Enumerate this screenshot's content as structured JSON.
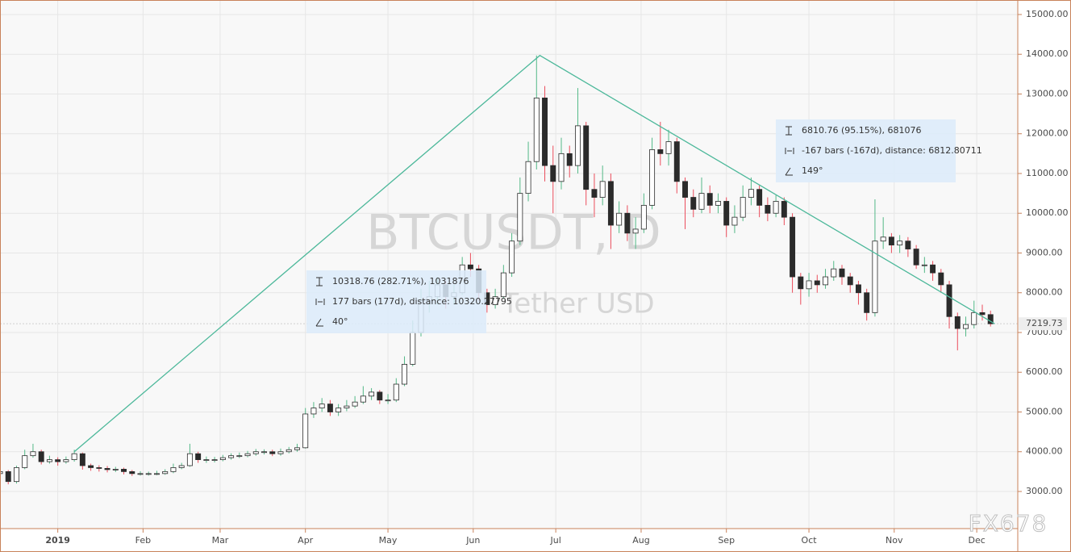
{
  "chart_data": {
    "type": "candlestick",
    "title": "BTCUSDT, D",
    "subtitle": "Tether USD",
    "watermark": "FX678",
    "up_wick_color": "#53b987",
    "down_wick_color": "#eb4d5c",
    "up_body_color": "#ffffff",
    "down_body_color": "#2b2b2b",
    "grid": true,
    "xlim": [
      0,
      123.3
    ],
    "ylim": [
      2066,
      15365
    ],
    "xticks": [
      {
        "value": 7,
        "label": "2019"
      },
      {
        "value": 17.33,
        "label": "Feb"
      },
      {
        "value": 26.67,
        "label": "Mar"
      },
      {
        "value": 37,
        "label": "Apr"
      },
      {
        "value": 47,
        "label": "May"
      },
      {
        "value": 57.33,
        "label": "Jun"
      },
      {
        "value": 67.33,
        "label": "Jul"
      },
      {
        "value": 77.67,
        "label": "Aug"
      },
      {
        "value": 88,
        "label": "Sep"
      },
      {
        "value": 98,
        "label": "Oct"
      },
      {
        "value": 108.33,
        "label": "Nov"
      },
      {
        "value": 118.33,
        "label": "Dec"
      }
    ],
    "yticks": [
      {
        "value": 3000,
        "label": "3000.00"
      },
      {
        "value": 4000,
        "label": "4000.00"
      },
      {
        "value": 5000,
        "label": "5000.00"
      },
      {
        "value": 6000,
        "label": "6000.00"
      },
      {
        "value": 7000,
        "label": "7000.00"
      },
      {
        "value": 8000,
        "label": "8000.00"
      },
      {
        "value": 9000,
        "label": "9000.00"
      },
      {
        "value": 10000,
        "label": "10000.00"
      },
      {
        "value": 11000,
        "label": "11000.00"
      },
      {
        "value": 12000,
        "label": "12000.00"
      },
      {
        "value": 13000,
        "label": "13000.00"
      },
      {
        "value": 14000,
        "label": "14000.00"
      },
      {
        "value": 15000,
        "label": "15000.00"
      }
    ],
    "open": [
      3450,
      3500,
      3250,
      3600,
      3900,
      4000,
      3750,
      3800,
      3750,
      3800,
      3950,
      3650,
      3600,
      3580,
      3550,
      3560,
      3500,
      3450,
      3450,
      3450,
      3450,
      3500,
      3600,
      3650,
      3950,
      3800,
      3800,
      3800,
      3850,
      3900,
      3900,
      3950,
      4000,
      4000,
      3950,
      4000,
      4050,
      4100,
      4950,
      5100,
      5200,
      5000,
      5100,
      5150,
      5250,
      5400,
      5500,
      5300,
      5300,
      5700,
      6200,
      7000,
      7800,
      7900,
      8200,
      7900,
      8000,
      8700,
      8600,
      8000,
      7700,
      7900,
      8500,
      9300,
      10500,
      11300,
      12900,
      11200,
      10800,
      11500,
      11200,
      12200,
      10600,
      10400,
      10800,
      9700,
      10000,
      9500,
      9600,
      10200,
      11600,
      11500,
      11800,
      10800,
      10400,
      10100,
      10500,
      10200,
      10300,
      9700,
      9900,
      10400,
      10600,
      10200,
      10000,
      10300,
      9900,
      8400,
      8100,
      8300,
      8200,
      8400,
      8600,
      8400,
      8200,
      8000,
      7500,
      9300,
      9400,
      9200,
      9300,
      9100,
      8700,
      8700,
      8500,
      8200,
      7400,
      7100,
      7200,
      7500,
      7450
    ],
    "high": [
      3560,
      3540,
      3650,
      4050,
      4200,
      4050,
      3900,
      3860,
      3880,
      4050,
      3980,
      3700,
      3660,
      3640,
      3620,
      3600,
      3540,
      3510,
      3500,
      3520,
      3560,
      3700,
      3720,
      4200,
      4000,
      3880,
      3870,
      3920,
      3960,
      3980,
      4020,
      4070,
      4060,
      4050,
      4080,
      4120,
      4200,
      5100,
      5250,
      5350,
      5300,
      5200,
      5300,
      5400,
      5650,
      5600,
      5550,
      5450,
      5850,
      6400,
      7300,
      8100,
      8300,
      8400,
      8300,
      8200,
      8900,
      9000,
      8700,
      8100,
      8100,
      8700,
      9500,
      10900,
      11800,
      13970,
      13200,
      11700,
      11900,
      11700,
      13150,
      12300,
      11000,
      11200,
      11000,
      10300,
      10200,
      9900,
      10500,
      11900,
      12300,
      12100,
      11900,
      10900,
      10600,
      10900,
      10700,
      10500,
      10400,
      10200,
      10700,
      10900,
      10700,
      10400,
      10450,
      10400,
      10000,
      8500,
      8500,
      8450,
      8600,
      8800,
      8700,
      8500,
      8300,
      8100,
      10350,
      9900,
      9500,
      9450,
      9400,
      9200,
      8900,
      8800,
      8600,
      8300,
      7500,
      7400,
      7800,
      7700,
      7550
    ],
    "low": [
      3380,
      3180,
      3200,
      3560,
      3850,
      3680,
      3700,
      3650,
      3700,
      3750,
      3550,
      3520,
      3500,
      3480,
      3490,
      3430,
      3390,
      3400,
      3400,
      3410,
      3420,
      3460,
      3560,
      3620,
      3720,
      3720,
      3730,
      3760,
      3800,
      3840,
      3860,
      3900,
      3930,
      3890,
      3900,
      3960,
      4000,
      4080,
      4850,
      5000,
      4900,
      4900,
      5020,
      5100,
      5200,
      5300,
      5200,
      5200,
      5250,
      5650,
      6150,
      6900,
      7500,
      7700,
      7600,
      7700,
      7950,
      8400,
      7800,
      7500,
      7600,
      7850,
      8400,
      9200,
      10300,
      11100,
      10800,
      10000,
      10600,
      10900,
      11000,
      10200,
      9900,
      10200,
      9100,
      9500,
      9300,
      9100,
      9500,
      10100,
      11200,
      11200,
      10500,
      9600,
      9900,
      10000,
      10000,
      10000,
      9400,
      9500,
      9800,
      10200,
      9900,
      9800,
      9900,
      9700,
      8000,
      7700,
      7900,
      8000,
      8100,
      8300,
      8200,
      8000,
      7700,
      7300,
      7400,
      9100,
      9000,
      9000,
      8900,
      8600,
      8500,
      8300,
      8000,
      7100,
      6550,
      6900,
      7100,
      7300,
      7150
    ],
    "close": [
      3500,
      3250,
      3600,
      3900,
      4000,
      3750,
      3800,
      3750,
      3800,
      3950,
      3650,
      3600,
      3580,
      3550,
      3560,
      3500,
      3450,
      3450,
      3450,
      3450,
      3500,
      3600,
      3650,
      3950,
      3800,
      3800,
      3800,
      3850,
      3900,
      3900,
      3950,
      4000,
      4000,
      3950,
      4000,
      4050,
      4100,
      4950,
      5100,
      5200,
      5000,
      5100,
      5150,
      5250,
      5400,
      5500,
      5300,
      5300,
      5700,
      6200,
      7000,
      7800,
      7900,
      8200,
      7900,
      8000,
      8700,
      8600,
      8000,
      7700,
      7900,
      8500,
      9300,
      10500,
      11300,
      12900,
      11200,
      10800,
      11500,
      11200,
      12200,
      10600,
      10400,
      10800,
      9700,
      10000,
      9500,
      9600,
      10200,
      11600,
      11500,
      11800,
      10800,
      10400,
      10100,
      10500,
      10200,
      10300,
      9700,
      9900,
      10400,
      10600,
      10200,
      10000,
      10300,
      9900,
      8400,
      8100,
      8300,
      8200,
      8400,
      8600,
      8400,
      8200,
      8000,
      7500,
      9300,
      9400,
      9200,
      9300,
      9100,
      8700,
      8700,
      8500,
      8200,
      7400,
      7100,
      7200,
      7500,
      7450,
      7219.73
    ],
    "trend_line": {
      "color": "#4cb89a",
      "x": [
        9,
        65.4,
        120.5
      ],
      "y": [
        4000,
        13970,
        7220
      ]
    },
    "measures": [
      {
        "price_range": "10318.76 (282.71%), 1031876",
        "bars_range": "177 bars (177d), distance: 10320.27795",
        "angle": "40°"
      },
      {
        "price_range": "6810.76 (95.15%), 681076",
        "bars_range": "-167 bars (-167d), distance: 6812.80711",
        "angle": "149°"
      }
    ]
  }
}
